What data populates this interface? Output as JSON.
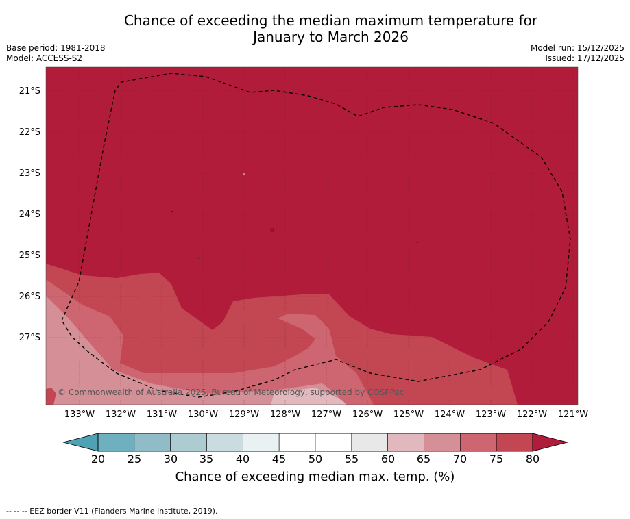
{
  "title": {
    "line1": "Chance of exceeding the median maximum temperature for",
    "line2": "January to March 2026"
  },
  "meta_left": {
    "base_period": "Base period: 1981-2018",
    "model": "Model: ACCESS-S2"
  },
  "meta_right": {
    "model_run": "Model run: 15/12/2025",
    "issued": "Issued: 17/12/2025"
  },
  "map": {
    "lat_labels": [
      "21°S",
      "22°S",
      "23°S",
      "24°S",
      "25°S",
      "26°S",
      "27°S"
    ],
    "lon_labels": [
      "133°W",
      "132°W",
      "131°W",
      "130°W",
      "129°W",
      "128°W",
      "127°W",
      "126°W",
      "125°W",
      "124°W",
      "123°W",
      "122°W",
      "121°W"
    ],
    "copyright": "© Commonwealth of Australia 2025, Bureau of Meteorology, supported by COSPPac",
    "colors": {
      "c80": "#b01c3a",
      "c75": "#c24753",
      "c70": "#cd6670",
      "c65": "#d58f96",
      "c60": "#e0b8bd",
      "c55": "#e8e8e9"
    }
  },
  "colorbar": {
    "ticks": [
      "20",
      "25",
      "30",
      "35",
      "40",
      "45",
      "50",
      "55",
      "60",
      "65",
      "70",
      "75",
      "80"
    ],
    "segment_colors": [
      "#6eb0bf",
      "#8fbcc7",
      "#adccd2",
      "#cbdce0",
      "#eaf1f3",
      "#ffffff",
      "#ffffff",
      "#e8e8e9",
      "#e0b8bd",
      "#d58f96",
      "#cd6670",
      "#c24753"
    ],
    "low_color": "#4fa2b4",
    "high_color": "#b01c3a",
    "title": "Chance of exceeding median max. temp. (%)"
  },
  "footer": "--  --  -- EEZ border V11 (Flanders Marine Institute, 2019)."
}
